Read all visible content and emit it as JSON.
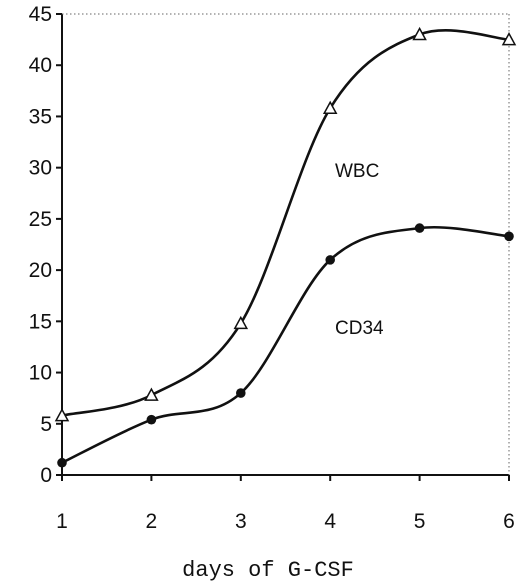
{
  "chart_data": {
    "type": "line",
    "title": "",
    "xlabel": "days of G-CSF",
    "ylabel": "",
    "x": [
      1,
      2,
      3,
      4,
      5,
      6
    ],
    "xlim": [
      1,
      6
    ],
    "ylim": [
      0,
      45
    ],
    "yticks": [
      0,
      5,
      10,
      15,
      20,
      25,
      30,
      35,
      40,
      45
    ],
    "xticks": [
      1,
      2,
      3,
      4,
      5,
      6
    ],
    "grid": false,
    "legend": "none",
    "series": [
      {
        "name": "WBC",
        "marker": "open-triangle",
        "values": [
          5.8,
          7.8,
          14.8,
          35.8,
          43.0,
          42.5
        ]
      },
      {
        "name": "CD34",
        "marker": "filled-circle",
        "values": [
          1.2,
          5.4,
          8.0,
          21.0,
          24.1,
          23.3
        ]
      }
    ]
  }
}
